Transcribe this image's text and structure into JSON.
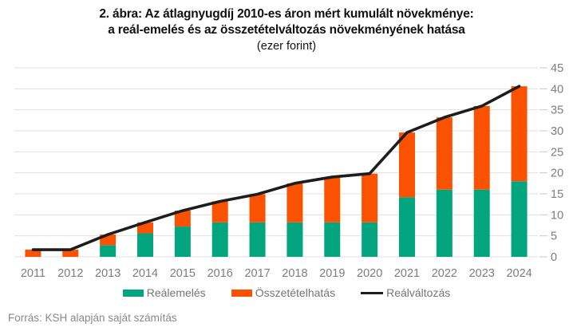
{
  "figure": {
    "title_line1": "2. ábra: Az átlagnyugdíj 2010-es áron mért kumulált növekménye:",
    "title_line2": "a reál-emelés és az összetételváltozás növekményének hatása",
    "title_line3": "(ezer forint)",
    "source": "Forrás: KSH alapján saját számítás"
  },
  "colors": {
    "green": "#03a57e",
    "orange": "#fa5200",
    "line": "#1d1d1d",
    "grid": "#e0e0e0",
    "tick": "#c9c9c9",
    "axis_text": "#7d7d7d"
  },
  "chart_data": {
    "type": "bar",
    "subtype": "stacked-bar-with-line",
    "title": "2. ábra: Az átlagnyugdíj 2010-es áron mért kumulált növekménye: a reál-emelés és az összetételváltozás növekményének hatása (ezer forint)",
    "categories": [
      "2011",
      "2012",
      "2013",
      "2014",
      "2015",
      "2016",
      "2017",
      "2018",
      "2019",
      "2020",
      "2021",
      "2022",
      "2023",
      "2024"
    ],
    "series": [
      {
        "name": "Reálemelés",
        "type": "bar",
        "color_key": "green",
        "values": [
          0,
          0,
          2.8,
          5.6,
          7.2,
          8.2,
          8.2,
          8.2,
          8.2,
          8.2,
          14.2,
          16.0,
          16.0,
          18.0
        ]
      },
      {
        "name": "Összetételhatás",
        "type": "bar",
        "color_key": "orange",
        "values": [
          1.7,
          1.7,
          2.5,
          2.6,
          3.8,
          5.0,
          6.7,
          9.3,
          10.8,
          11.6,
          15.4,
          17.2,
          19.9,
          22.6
        ]
      },
      {
        "name": "Reálváltozás",
        "type": "line",
        "color_key": "line",
        "values": [
          1.7,
          1.7,
          5.3,
          8.2,
          11.0,
          13.2,
          14.9,
          17.5,
          19.0,
          19.8,
          29.6,
          33.2,
          35.9,
          40.6
        ]
      }
    ],
    "stacked": true,
    "ylim": [
      0,
      45
    ],
    "yticks": [
      0,
      5,
      10,
      15,
      20,
      25,
      30,
      35,
      40,
      45
    ],
    "xlabel": "",
    "ylabel": "",
    "grid": true,
    "y_axis_side": "right",
    "legend_position": "bottom"
  }
}
